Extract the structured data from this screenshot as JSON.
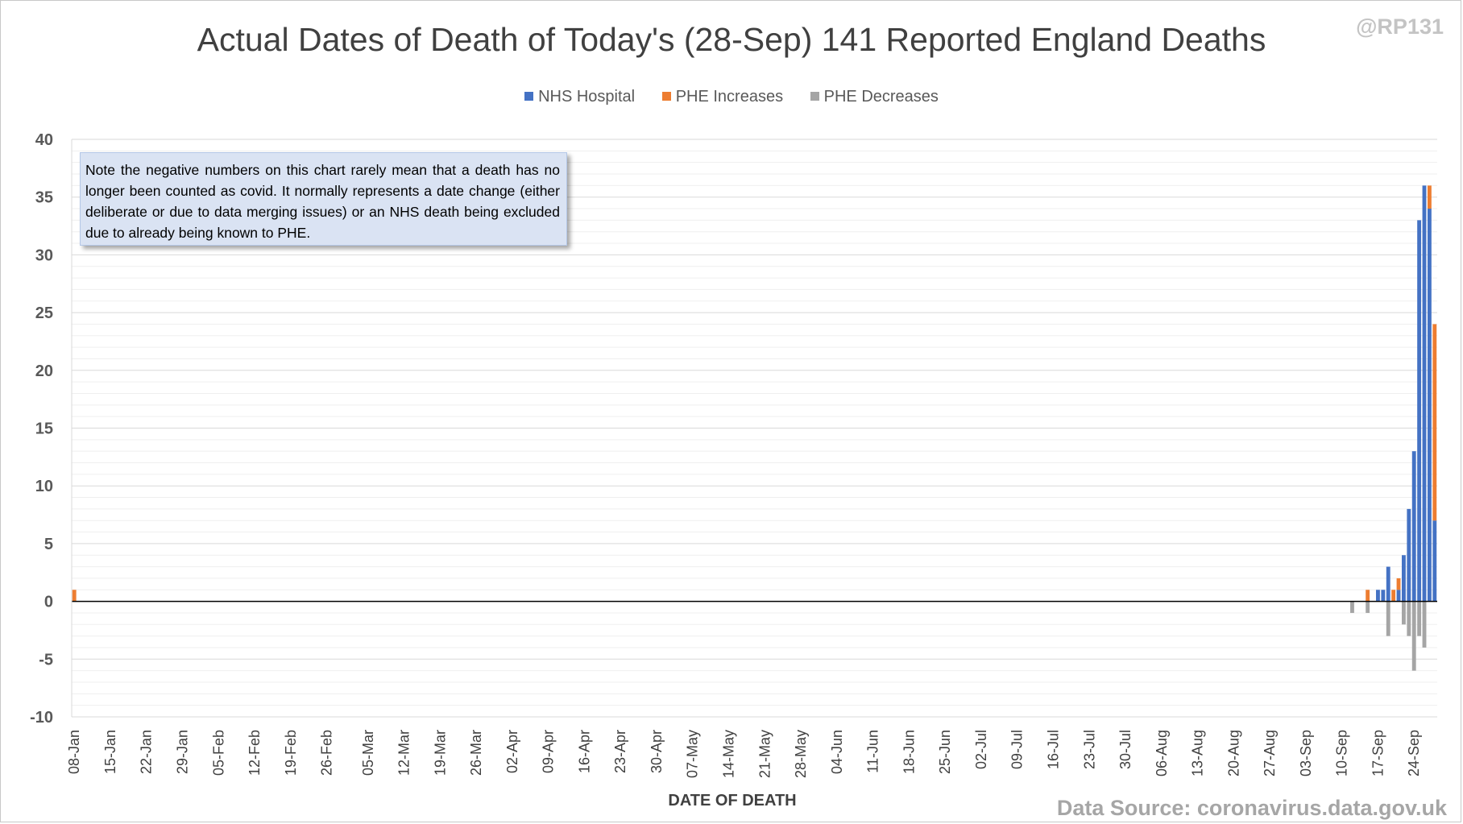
{
  "handle": "@RP131",
  "source": "Data Source: coronavirus.data.gov.uk",
  "note": "Note the negative numbers on this chart rarely mean that a death has no longer been counted as covid. It normally represents a date change (either deliberate or due to data merging issues) or an NHS death being excluded due to already being known to PHE.",
  "colors": {
    "nhs": "#4472c4",
    "phe_inc": "#ed7d31",
    "phe_dec": "#a5a5a5",
    "grid": "#d9d9d9",
    "axis": "#000000"
  },
  "chart_data": {
    "type": "bar",
    "stacked": true,
    "title": "Actual Dates of Death of Today's (28-Sep) 141 Reported England Deaths",
    "xlabel": "DATE OF DEATH",
    "ylabel": "",
    "ylim": [
      -10,
      40
    ],
    "y_major_ticks": [
      40,
      35,
      30,
      25,
      20,
      15,
      10,
      5,
      0,
      -5,
      -10
    ],
    "y_minor_step": 1,
    "grid": true,
    "legend_position": "top-center",
    "x_start": "08-Jan",
    "x_end": "27-Sep",
    "x_tick_labels": [
      "08-Jan",
      "15-Jan",
      "22-Jan",
      "29-Jan",
      "05-Feb",
      "12-Feb",
      "19-Feb",
      "26-Feb",
      "05-Mar",
      "12-Mar",
      "19-Mar",
      "26-Mar",
      "02-Apr",
      "09-Apr",
      "16-Apr",
      "23-Apr",
      "30-Apr",
      "07-May",
      "14-May",
      "21-May",
      "28-May",
      "04-Jun",
      "11-Jun",
      "18-Jun",
      "25-Jun",
      "02-Jul",
      "09-Jul",
      "16-Jul",
      "23-Jul",
      "30-Jul",
      "06-Aug",
      "13-Aug",
      "20-Aug",
      "27-Aug",
      "03-Sep",
      "10-Sep",
      "17-Sep",
      "24-Sep"
    ],
    "series": [
      {
        "name": "NHS Hospital",
        "color": "#4472c4",
        "points": [
          {
            "date": "14-Sep",
            "value": 0
          },
          {
            "date": "15-Sep",
            "value": 0
          },
          {
            "date": "16-Sep",
            "value": 0
          },
          {
            "date": "17-Sep",
            "value": 1
          },
          {
            "date": "18-Sep",
            "value": 1
          },
          {
            "date": "19-Sep",
            "value": 3
          },
          {
            "date": "20-Sep",
            "value": 0
          },
          {
            "date": "21-Sep",
            "value": 1
          },
          {
            "date": "22-Sep",
            "value": 4
          },
          {
            "date": "23-Sep",
            "value": 8
          },
          {
            "date": "24-Sep",
            "value": 13
          },
          {
            "date": "25-Sep",
            "value": 33
          },
          {
            "date": "26-Sep",
            "value": 36
          },
          {
            "date": "27-Sep",
            "value": 34
          },
          {
            "date": "28-Sep",
            "value": 7
          }
        ]
      },
      {
        "name": "PHE Increases",
        "color": "#ed7d31",
        "points": [
          {
            "date": "08-Jan",
            "value": 1
          },
          {
            "date": "15-Sep",
            "value": 1
          },
          {
            "date": "20-Sep",
            "value": 1
          },
          {
            "date": "21-Sep",
            "value": 1
          },
          {
            "date": "27-Sep",
            "value": 2
          },
          {
            "date": "28-Sep",
            "value": 17
          }
        ]
      },
      {
        "name": "PHE Decreases",
        "color": "#a5a5a5",
        "points": [
          {
            "date": "12-Sep",
            "value": -1
          },
          {
            "date": "15-Sep",
            "value": -1
          },
          {
            "date": "19-Sep",
            "value": -3
          },
          {
            "date": "22-Sep",
            "value": -2
          },
          {
            "date": "23-Sep",
            "value": -3
          },
          {
            "date": "24-Sep",
            "value": -6
          },
          {
            "date": "25-Sep",
            "value": -3
          },
          {
            "date": "26-Sep",
            "value": -4
          }
        ]
      }
    ]
  }
}
